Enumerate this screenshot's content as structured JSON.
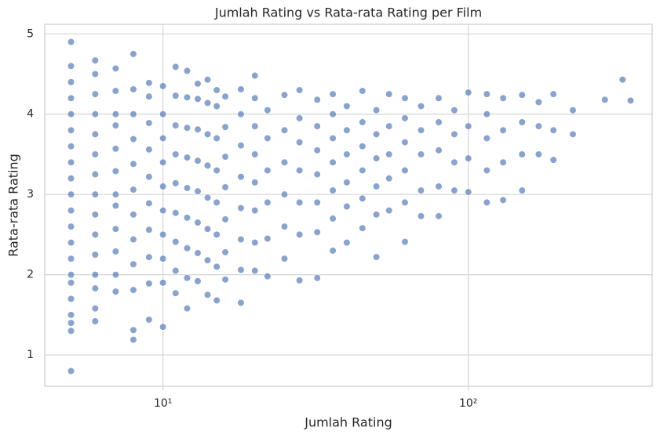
{
  "chart_data": {
    "type": "scatter",
    "title": "Jumlah Rating vs Rata-rata Rating per Film",
    "x_label": "Jumlah Rating",
    "y_label": "Rata-rata Rating",
    "x_scale": "log",
    "grid": true,
    "color": "#4c72b0",
    "xlim": [
      4.1,
      400
    ],
    "ylim": [
      0.61,
      5.12
    ],
    "xticks": [
      {
        "value": 10,
        "label": "10¹"
      },
      {
        "value": 100,
        "label": "10²"
      }
    ],
    "yticks": [
      1,
      2,
      3,
      4,
      5
    ],
    "x": [
      5,
      5,
      5,
      5,
      5,
      5,
      5,
      5,
      5,
      5,
      5,
      5,
      5,
      5,
      5,
      5,
      5,
      5,
      5,
      5,
      5,
      6,
      6,
      6,
      6,
      6,
      6,
      6,
      6,
      6,
      6,
      6,
      6,
      6,
      6,
      6,
      7,
      7,
      7,
      7,
      7,
      7,
      7,
      7,
      7,
      7,
      7,
      7,
      8,
      8,
      8,
      8,
      8,
      8,
      8,
      8,
      8,
      8,
      8,
      8,
      9,
      9,
      9,
      9,
      9,
      9,
      9,
      9,
      9,
      9,
      10,
      10,
      10,
      10,
      10,
      10,
      10,
      10,
      10,
      10,
      11,
      11,
      11,
      11,
      11,
      11,
      11,
      11,
      11,
      12,
      12,
      12,
      12,
      12,
      12,
      12,
      12,
      12,
      13,
      13,
      13,
      13,
      13,
      13,
      13,
      13,
      14,
      14,
      14,
      14,
      14,
      14,
      14,
      14,
      15,
      15,
      15,
      15,
      15,
      15,
      15,
      15,
      16,
      16,
      16,
      16,
      16,
      16,
      16,
      18,
      18,
      18,
      18,
      18,
      18,
      18,
      18,
      20,
      20,
      20,
      20,
      20,
      20,
      20,
      20,
      22,
      22,
      22,
      22,
      22,
      22,
      25,
      25,
      25,
      25,
      25,
      25,
      28,
      28,
      28,
      28,
      28,
      28,
      28,
      32,
      32,
      32,
      32,
      32,
      32,
      32,
      36,
      36,
      36,
      36,
      36,
      36,
      36,
      40,
      40,
      40,
      40,
      40,
      40,
      45,
      45,
      45,
      45,
      45,
      45,
      50,
      50,
      50,
      50,
      50,
      50,
      55,
      55,
      55,
      55,
      55,
      62,
      62,
      62,
      62,
      62,
      62,
      70,
      70,
      70,
      70,
      70,
      80,
      80,
      80,
      80,
      80,
      90,
      90,
      90,
      90,
      100,
      100,
      100,
      100,
      115,
      115,
      115,
      115,
      115,
      130,
      130,
      130,
      130,
      150,
      150,
      150,
      150,
      170,
      170,
      170,
      190,
      190,
      190,
      220,
      220,
      280,
      320,
      340
    ],
    "values": [
      0.8,
      1.3,
      1.4,
      1.5,
      1.7,
      1.9,
      2.0,
      2.2,
      2.4,
      2.6,
      2.8,
      3.0,
      3.2,
      3.4,
      3.6,
      3.8,
      4.0,
      4.2,
      4.4,
      4.6,
      4.9,
      1.42,
      1.58,
      1.83,
      2.0,
      2.25,
      2.5,
      2.75,
      3.0,
      3.25,
      3.5,
      3.75,
      4.0,
      4.25,
      4.5,
      4.67,
      1.79,
      2.0,
      2.29,
      2.57,
      2.86,
      3.0,
      3.29,
      3.57,
      3.86,
      4.0,
      4.29,
      4.57,
      1.19,
      1.31,
      1.81,
      2.13,
      2.44,
      2.75,
      3.06,
      3.38,
      3.69,
      4.0,
      4.31,
      4.75,
      1.44,
      1.89,
      2.22,
      2.56,
      2.89,
      3.22,
      3.56,
      3.89,
      4.22,
      4.39,
      1.35,
      1.9,
      2.2,
      2.5,
      2.8,
      3.1,
      3.4,
      3.7,
      4.0,
      4.35,
      1.77,
      2.05,
      2.41,
      2.77,
      3.14,
      3.5,
      3.86,
      4.23,
      4.59,
      1.58,
      1.96,
      2.33,
      2.71,
      3.08,
      3.46,
      3.83,
      4.21,
      4.54,
      1.92,
      2.27,
      2.65,
      3.04,
      3.42,
      3.81,
      4.19,
      4.38,
      1.75,
      2.18,
      2.57,
      2.96,
      3.36,
      3.75,
      4.14,
      4.43,
      1.68,
      2.1,
      2.5,
      2.9,
      3.3,
      3.7,
      4.1,
      4.3,
      1.94,
      2.28,
      2.69,
      3.09,
      3.47,
      3.84,
      4.22,
      1.65,
      2.06,
      2.44,
      2.83,
      3.22,
      3.61,
      4.0,
      4.31,
      2.05,
      2.4,
      2.8,
      3.15,
      3.5,
      3.85,
      4.2,
      4.48,
      1.98,
      2.45,
      2.9,
      3.3,
      3.7,
      4.05,
      2.2,
      2.6,
      3.0,
      3.4,
      3.8,
      4.24,
      1.93,
      2.5,
      2.9,
      3.3,
      3.65,
      3.95,
      4.3,
      1.96,
      2.53,
      2.9,
      3.25,
      3.55,
      3.85,
      4.18,
      2.3,
      2.7,
      3.05,
      3.4,
      3.7,
      4.0,
      4.25,
      2.4,
      2.85,
      3.15,
      3.5,
      3.8,
      4.1,
      2.58,
      2.95,
      3.3,
      3.6,
      3.9,
      4.29,
      2.22,
      2.75,
      3.1,
      3.45,
      3.75,
      4.05,
      2.8,
      3.2,
      3.5,
      3.85,
      4.25,
      2.41,
      2.9,
      3.3,
      3.65,
      3.95,
      4.2,
      2.73,
      3.05,
      3.5,
      3.8,
      4.1,
      2.73,
      3.1,
      3.55,
      3.9,
      4.2,
      3.05,
      3.4,
      3.75,
      4.05,
      3.03,
      3.45,
      3.85,
      4.27,
      2.9,
      3.3,
      3.7,
      4.0,
      4.25,
      2.93,
      3.4,
      3.8,
      4.2,
      3.05,
      3.5,
      3.9,
      4.24,
      3.5,
      3.85,
      4.15,
      3.43,
      3.8,
      4.25,
      3.75,
      4.05,
      4.18,
      4.43,
      4.17
    ]
  }
}
